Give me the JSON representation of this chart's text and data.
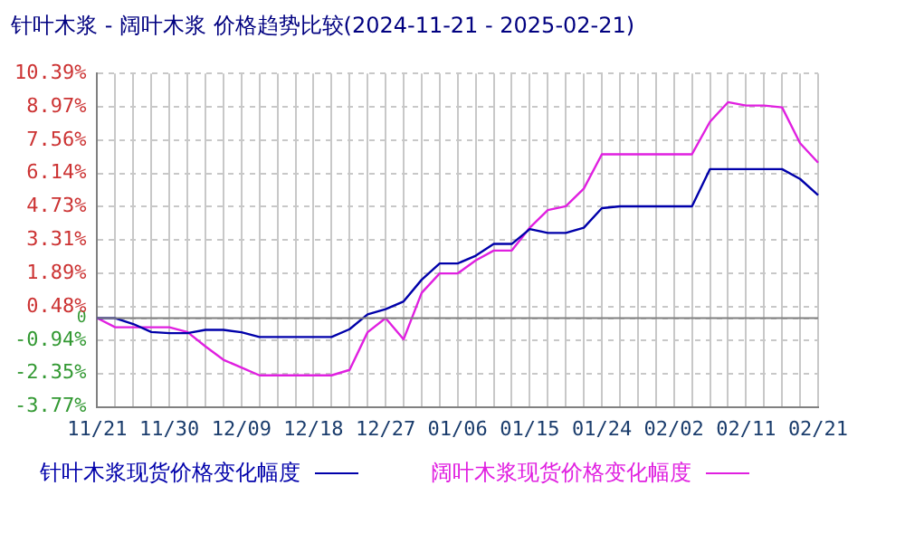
{
  "chart_data": {
    "type": "line",
    "title": "针叶木浆 - 阔叶木浆 价格趋势比较(2024-11-21 - 2025-02-21)",
    "categories": [
      "11/21",
      null,
      null,
      null,
      "11/30",
      null,
      null,
      null,
      "12/09",
      null,
      null,
      null,
      "12/18",
      null,
      null,
      null,
      "12/27",
      null,
      null,
      null,
      "01/06",
      null,
      null,
      null,
      "01/15",
      null,
      null,
      null,
      "01/24",
      null,
      null,
      null,
      "02/02",
      null,
      null,
      null,
      "02/11",
      null,
      null,
      null,
      "02/21"
    ],
    "series": [
      {
        "name": "针叶木浆现货价格变化幅度",
        "color": "#0000aa",
        "values": [
          0,
          0,
          -0.25,
          -0.59,
          -0.64,
          -0.64,
          -0.5,
          -0.5,
          -0.6,
          -0.8,
          -0.8,
          -0.8,
          -0.8,
          -0.8,
          -0.47,
          0.16,
          0.38,
          0.71,
          1.63,
          2.32,
          2.32,
          2.65,
          3.15,
          3.15,
          3.78,
          3.62,
          3.62,
          3.84,
          4.67,
          4.75,
          4.75,
          4.75,
          4.75,
          4.75,
          6.33,
          6.33,
          6.33,
          6.33,
          6.33,
          5.91,
          5.22
        ]
      },
      {
        "name": "阔叶木浆现货价格变化幅度",
        "color": "#e020e0",
        "values": [
          0,
          -0.39,
          -0.39,
          -0.39,
          -0.39,
          -0.59,
          -1.2,
          -1.77,
          -2.1,
          -2.43,
          -2.43,
          -2.43,
          -2.43,
          -2.43,
          -2.2,
          -0.6,
          0,
          -0.9,
          1.07,
          1.9,
          1.9,
          2.45,
          2.87,
          2.87,
          3.84,
          4.59,
          4.75,
          5.5,
          6.96,
          6.96,
          6.96,
          6.96,
          6.96,
          6.96,
          8.34,
          9.17,
          9.03,
          9.03,
          8.95,
          7.43,
          6.6
        ]
      }
    ],
    "ylim": [
      -3.77,
      10.39
    ],
    "yticks": [
      {
        "value": -3.77,
        "label": "-3.77%"
      },
      {
        "value": -2.35,
        "label": "-2.35%"
      },
      {
        "value": -0.94,
        "label": "-0.94%"
      },
      {
        "value": 0,
        "label": "0"
      },
      {
        "value": 0.48,
        "label": "0.48%"
      },
      {
        "value": 1.89,
        "label": "1.89%"
      },
      {
        "value": 3.31,
        "label": "3.31%"
      },
      {
        "value": 4.73,
        "label": "4.73%"
      },
      {
        "value": 6.14,
        "label": "6.14%"
      },
      {
        "value": 7.56,
        "label": "7.56%"
      },
      {
        "value": 8.97,
        "label": "8.97%"
      },
      {
        "value": 10.39,
        "label": "10.39%"
      }
    ],
    "ref_lines": [
      {
        "axis": "y",
        "value": 0,
        "color": "#808080"
      }
    ],
    "grid": true,
    "legend": "bottom",
    "marker": "none",
    "line_style": "solid"
  }
}
